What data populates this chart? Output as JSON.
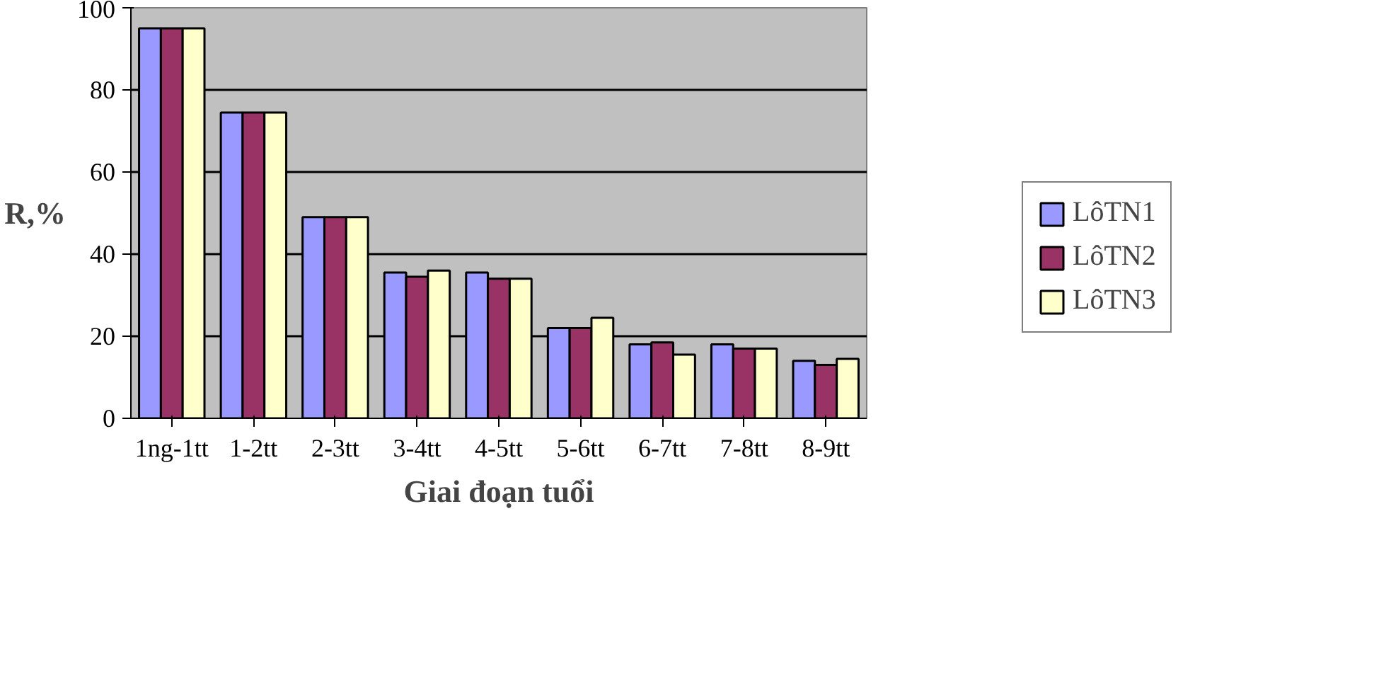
{
  "chart_data": {
    "type": "bar",
    "xlabel": "Giai đoạn tuổi",
    "ylabel": "R,%",
    "categories": [
      "1ng-1tt",
      "1-2tt",
      "2-3tt",
      "3-4tt",
      "4-5tt",
      "5-6tt",
      "6-7tt",
      "7-8tt",
      "8-9tt"
    ],
    "series": [
      {
        "name": "LôTN1",
        "color": "#9999ff",
        "values": [
          95,
          74.5,
          49,
          35.5,
          35.5,
          22,
          18,
          18,
          14
        ]
      },
      {
        "name": "LôTN2",
        "color": "#993366",
        "values": [
          95,
          74.5,
          49,
          34.5,
          34,
          22,
          18.5,
          17,
          13
        ]
      },
      {
        "name": "LôTN3",
        "color": "#ffffcc",
        "values": [
          95,
          74.5,
          49,
          36,
          34,
          24.5,
          15.5,
          17,
          14.5
        ]
      }
    ],
    "ylim": [
      0,
      100
    ],
    "yticks": [
      0,
      20,
      40,
      60,
      80,
      100
    ],
    "grid": "y",
    "legend": "right"
  }
}
